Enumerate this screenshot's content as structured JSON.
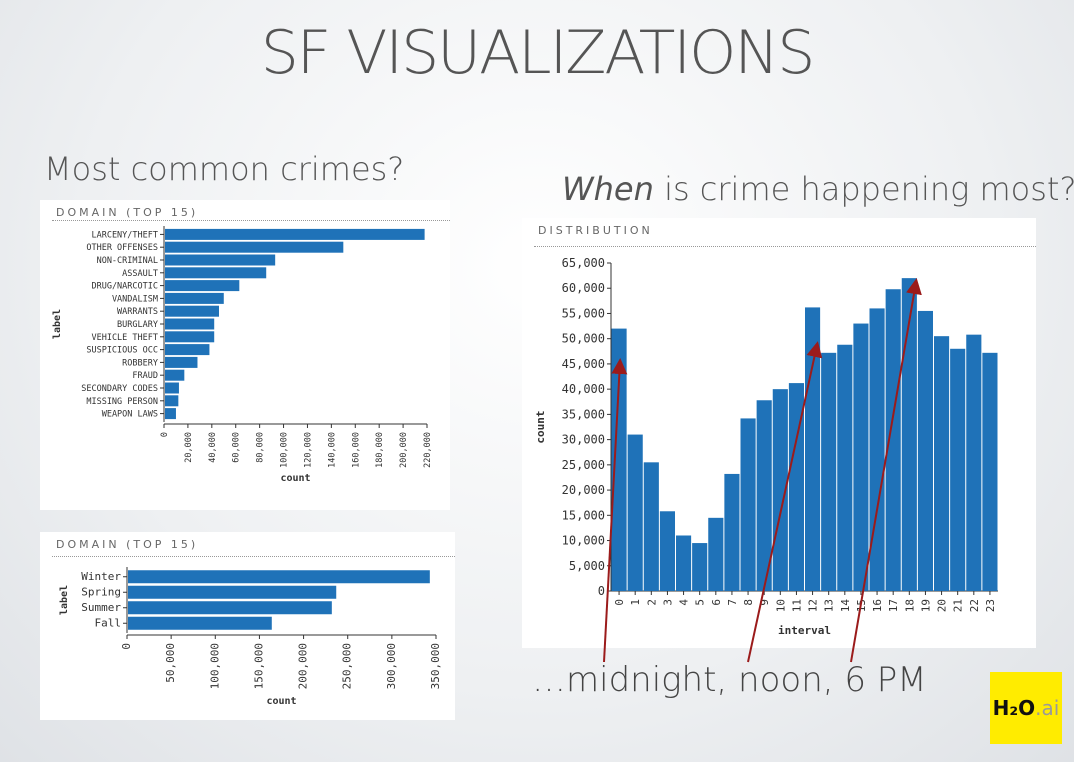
{
  "slide": {
    "title": "SF VISUALIZATIONS",
    "heading_left": "Most common crimes?",
    "heading_right_em": "When",
    "heading_right_rest": " is crime happening most?",
    "caption": "…midnight, noon, 6 PM",
    "logo_main": "H₂O",
    "logo_suffix": ".ai"
  },
  "chart_data": [
    {
      "type": "bar",
      "orientation": "horizontal",
      "title": "DOMAIN (TOP 15)",
      "xlabel": "count",
      "ylabel": "label",
      "xlim": [
        0,
        220000
      ],
      "ticks": [
        "0",
        "20,000",
        "40,000",
        "60,000",
        "80,000",
        "100,000",
        "120,000",
        "140,000",
        "160,000",
        "180,000",
        "200,000",
        "220,000"
      ],
      "categories": [
        "LARCENY/THEFT",
        "OTHER OFFENSES",
        "NON-CRIMINAL",
        "ASSAULT",
        "DRUG/NARCOTIC",
        "VANDALISM",
        "WARRANTS",
        "BURGLARY",
        "VEHICLE THEFT",
        "SUSPICIOUS OCC",
        "ROBBERY",
        "FRAUD",
        "SECONDARY CODES",
        "MISSING PERSON",
        "WEAPON LAWS"
      ],
      "values": [
        218000,
        150000,
        93000,
        85500,
        63000,
        50000,
        46000,
        42000,
        42000,
        38000,
        28000,
        17000,
        12500,
        12000,
        10000
      ]
    },
    {
      "type": "bar",
      "orientation": "horizontal",
      "title": "DOMAIN (TOP 15)",
      "xlabel": "count",
      "ylabel": "label",
      "xlim": [
        0,
        350000
      ],
      "ticks": [
        "0",
        "50,000",
        "100,000",
        "150,000",
        "200,000",
        "250,000",
        "300,000",
        "350,000"
      ],
      "categories": [
        "Winter",
        "Spring",
        "Summer",
        "Fall"
      ],
      "values": [
        343000,
        237000,
        232000,
        164000
      ]
    },
    {
      "type": "bar",
      "title": "DISTRIBUTION",
      "xlabel": "interval",
      "ylabel": "count",
      "ylim": [
        0,
        65000
      ],
      "ticks": [
        "0",
        "5,000",
        "10,000",
        "15,000",
        "20,000",
        "25,000",
        "30,000",
        "35,000",
        "40,000",
        "45,000",
        "50,000",
        "55,000",
        "60,000",
        "65,000"
      ],
      "categories": [
        "0",
        "1",
        "2",
        "3",
        "4",
        "5",
        "6",
        "7",
        "8",
        "9",
        "10",
        "11",
        "12",
        "13",
        "14",
        "15",
        "16",
        "17",
        "18",
        "19",
        "20",
        "21",
        "22",
        "23"
      ],
      "values": [
        52000,
        31000,
        25500,
        15800,
        11000,
        9500,
        14500,
        23200,
        34200,
        37800,
        40000,
        41200,
        56200,
        47200,
        48800,
        53000,
        56000,
        59800,
        62000,
        55500,
        50500,
        48000,
        50800,
        47200
      ]
    }
  ]
}
